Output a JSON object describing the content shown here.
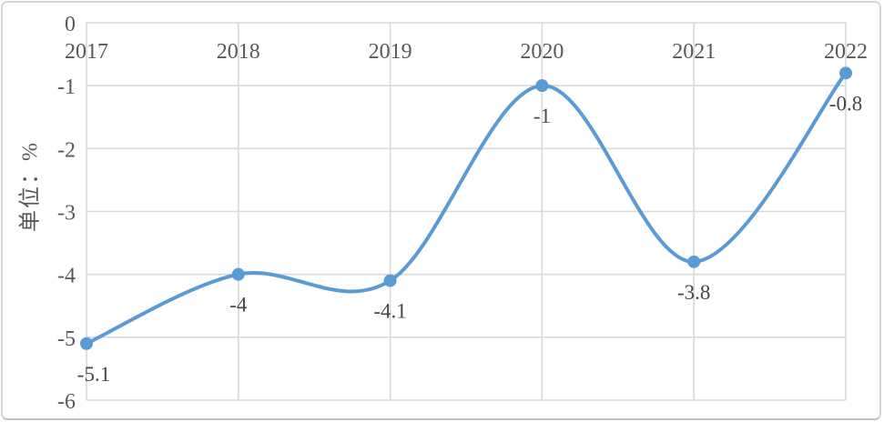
{
  "chart_data": {
    "type": "line",
    "title": "",
    "xlabel": "",
    "ylabel": "单位：%",
    "categories": [
      "2017",
      "2018",
      "2019",
      "2020",
      "2021",
      "2022"
    ],
    "series": [
      {
        "name": "",
        "values": [
          -5.1,
          -4,
          -4.1,
          -1,
          -3.8,
          -0.8
        ],
        "data_labels": [
          "-5.1",
          "-4",
          "-4.1",
          "-1",
          "-3.8",
          "-0.8"
        ]
      }
    ],
    "ylim": [
      -6,
      0
    ],
    "yticks": [
      0,
      -1,
      -2,
      -3,
      -4,
      -5,
      -6
    ],
    "ytick_labels": [
      "0",
      "-1",
      "-2",
      "-3",
      "-4",
      "-5",
      "-6"
    ],
    "grid": true,
    "legend_position": "none",
    "line_style": "smooth",
    "marker": "circle",
    "colors": {
      "line": "#5b9bd5",
      "marker": "#5b9bd5",
      "gridline": "#d9d9d9",
      "axis_text": "#595959",
      "data_label_text": "#474747",
      "frame_border": "#d7d5d5",
      "background": "#ffffff"
    }
  }
}
